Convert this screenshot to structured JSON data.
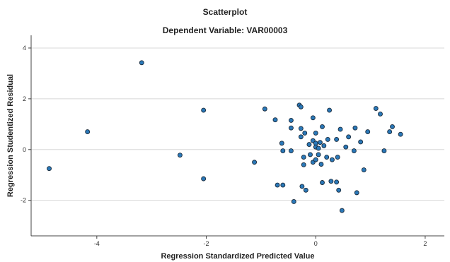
{
  "chart_data": {
    "type": "scatter",
    "title": "Scatterplot",
    "subtitle": "Dependent Variable: VAR00003",
    "xlabel": "Regression Standardized Predicted Value",
    "ylabel": "Regression Studentized Residual",
    "xlim": [
      -5.2,
      2.35
    ],
    "ylim": [
      -3.4,
      4.5
    ],
    "xticks": [
      -4,
      -2,
      0,
      2
    ],
    "yticks": [
      4,
      2,
      0,
      -2
    ],
    "grid": "horizontal",
    "marker_color": "#2a78b8",
    "marker_edge": "#1a2a3a",
    "points": [
      {
        "x": -4.87,
        "y": -0.75
      },
      {
        "x": -4.17,
        "y": 0.7
      },
      {
        "x": -3.18,
        "y": 3.42
      },
      {
        "x": -2.48,
        "y": -0.22
      },
      {
        "x": -2.05,
        "y": 1.55
      },
      {
        "x": -2.05,
        "y": -1.15
      },
      {
        "x": -1.12,
        "y": -0.5
      },
      {
        "x": -0.93,
        "y": 1.6
      },
      {
        "x": -0.74,
        "y": 1.17
      },
      {
        "x": -0.7,
        "y": -1.4
      },
      {
        "x": -0.6,
        "y": -1.4
      },
      {
        "x": -0.62,
        "y": 0.25
      },
      {
        "x": -0.6,
        "y": -0.05
      },
      {
        "x": -0.45,
        "y": 0.85
      },
      {
        "x": -0.45,
        "y": -0.05
      },
      {
        "x": -0.45,
        "y": 1.15
      },
      {
        "x": -0.4,
        "y": -2.05
      },
      {
        "x": -0.3,
        "y": 1.75
      },
      {
        "x": -0.27,
        "y": 1.68
      },
      {
        "x": -0.27,
        "y": 0.83
      },
      {
        "x": -0.27,
        "y": 0.5
      },
      {
        "x": -0.25,
        "y": -1.45
      },
      {
        "x": -0.22,
        "y": -0.3
      },
      {
        "x": -0.22,
        "y": -0.6
      },
      {
        "x": -0.2,
        "y": 0.65
      },
      {
        "x": -0.18,
        "y": -1.6
      },
      {
        "x": -0.12,
        "y": 0.2
      },
      {
        "x": -0.1,
        "y": -0.2
      },
      {
        "x": -0.05,
        "y": 1.25
      },
      {
        "x": -0.05,
        "y": 0.35
      },
      {
        "x": -0.05,
        "y": -0.5
      },
      {
        "x": 0.0,
        "y": 0.65
      },
      {
        "x": 0.0,
        "y": 0.25
      },
      {
        "x": 0.0,
        "y": 0.1
      },
      {
        "x": 0.0,
        "y": -0.4
      },
      {
        "x": 0.05,
        "y": 0.05
      },
      {
        "x": 0.05,
        "y": -0.2
      },
      {
        "x": 0.08,
        "y": 0.28
      },
      {
        "x": 0.1,
        "y": -0.58
      },
      {
        "x": 0.12,
        "y": 0.9
      },
      {
        "x": 0.12,
        "y": -1.3
      },
      {
        "x": 0.15,
        "y": 0.15
      },
      {
        "x": 0.2,
        "y": -0.3
      },
      {
        "x": 0.22,
        "y": 0.4
      },
      {
        "x": 0.25,
        "y": 1.55
      },
      {
        "x": 0.28,
        "y": -1.25
      },
      {
        "x": 0.3,
        "y": -0.4
      },
      {
        "x": 0.38,
        "y": 0.4
      },
      {
        "x": 0.38,
        "y": -1.28
      },
      {
        "x": 0.4,
        "y": -0.3
      },
      {
        "x": 0.42,
        "y": -1.6
      },
      {
        "x": 0.45,
        "y": 0.8
      },
      {
        "x": 0.48,
        "y": -2.4
      },
      {
        "x": 0.55,
        "y": 0.1
      },
      {
        "x": 0.6,
        "y": 0.5
      },
      {
        "x": 0.7,
        "y": -0.05
      },
      {
        "x": 0.72,
        "y": 0.85
      },
      {
        "x": 0.75,
        "y": -1.7
      },
      {
        "x": 0.82,
        "y": 0.3
      },
      {
        "x": 0.88,
        "y": -0.8
      },
      {
        "x": 0.95,
        "y": 0.7
      },
      {
        "x": 1.1,
        "y": 1.62
      },
      {
        "x": 1.18,
        "y": 1.4
      },
      {
        "x": 1.25,
        "y": -0.05
      },
      {
        "x": 1.35,
        "y": 0.7
      },
      {
        "x": 1.4,
        "y": 0.9
      },
      {
        "x": 1.55,
        "y": 0.6
      }
    ]
  }
}
